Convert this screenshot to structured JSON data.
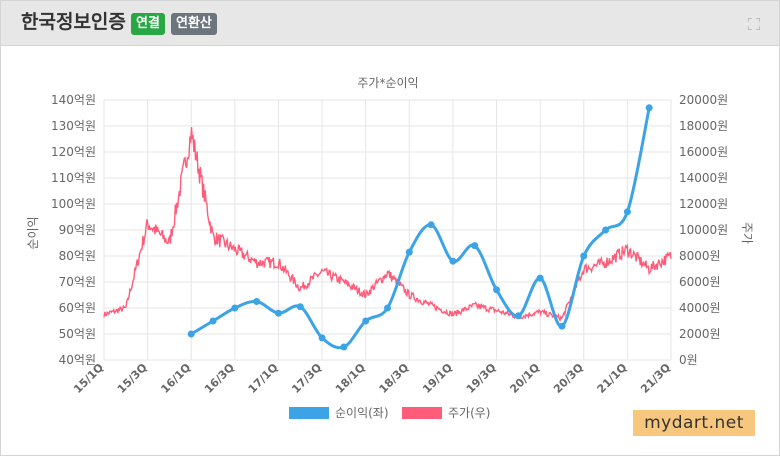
{
  "header": {
    "title": "한국정보인증",
    "badge_consolidated": "연결",
    "badge_annualized": "연환산",
    "expand_icon": "expand-icon"
  },
  "watermark": "mydart.net",
  "colors": {
    "profit": "#3ba3e6",
    "price": "#ff5c7a",
    "badge_green": "#28a745",
    "badge_gray": "#6c757d"
  },
  "chart_data": {
    "type": "line",
    "title": "주가*순이익",
    "ylabel_left": "순이익",
    "ylabel_right": "주가",
    "y_left": {
      "ticks": [
        "140억원",
        "130억원",
        "120억원",
        "110억원",
        "100억원",
        "90억원",
        "80억원",
        "70억원",
        "60억원",
        "50억원",
        "40억원"
      ],
      "range": [
        40,
        140
      ]
    },
    "y_right": {
      "ticks": [
        "20000원",
        "18000원",
        "16000원",
        "14000원",
        "12000원",
        "10000원",
        "8000원",
        "6000원",
        "4000원",
        "2000원",
        "0원"
      ],
      "range": [
        0,
        20000
      ]
    },
    "x_ticks": [
      "15/1Q",
      "15/3Q",
      "16/1Q",
      "16/3Q",
      "17/1Q",
      "17/3Q",
      "18/1Q",
      "18/3Q",
      "19/1Q",
      "19/3Q",
      "20/1Q",
      "20/3Q",
      "21/1Q",
      "21/3Q"
    ],
    "grid": true,
    "legend_position": "bottom",
    "series": [
      {
        "name": "순이익(좌)",
        "x": [
          "16/1Q",
          "16/2Q",
          "16/3Q",
          "16/4Q",
          "17/1Q",
          "17/2Q",
          "17/3Q",
          "17/4Q",
          "18/1Q",
          "18/2Q",
          "18/3Q",
          "18/4Q",
          "19/1Q",
          "19/2Q",
          "19/3Q",
          "19/4Q",
          "20/1Q",
          "20/2Q",
          "20/3Q",
          "20/4Q",
          "21/1Q",
          "21/2Q"
        ],
        "values": [
          50,
          55,
          60,
          62.5,
          58,
          60.5,
          48.5,
          45,
          55,
          60,
          81.5,
          92,
          78,
          84,
          67,
          57,
          71.5,
          53,
          80,
          90,
          97,
          137
        ]
      },
      {
        "name": "주가(우)",
        "x": [
          "15/1Q",
          "15/2Q",
          "15/3Q",
          "15/4Q",
          "16/1Q",
          "16/2Q",
          "16/3Q",
          "16/4Q",
          "17/1Q",
          "17/2Q",
          "17/3Q",
          "17/4Q",
          "18/1Q",
          "18/2Q",
          "18/3Q",
          "18/4Q",
          "19/1Q",
          "19/2Q",
          "19/3Q",
          "19/4Q",
          "20/1Q",
          "20/2Q",
          "20/3Q",
          "20/4Q",
          "21/1Q",
          "21/2Q",
          "21/3Q"
        ],
        "values": [
          3500,
          4000,
          10500,
          9000,
          17500,
          9500,
          8500,
          7500,
          7500,
          5500,
          6800,
          6000,
          5000,
          6700,
          5000,
          4200,
          3500,
          4200,
          3800,
          3300,
          3700,
          3200,
          7000,
          7500,
          8500,
          7000,
          8000
        ]
      }
    ]
  }
}
